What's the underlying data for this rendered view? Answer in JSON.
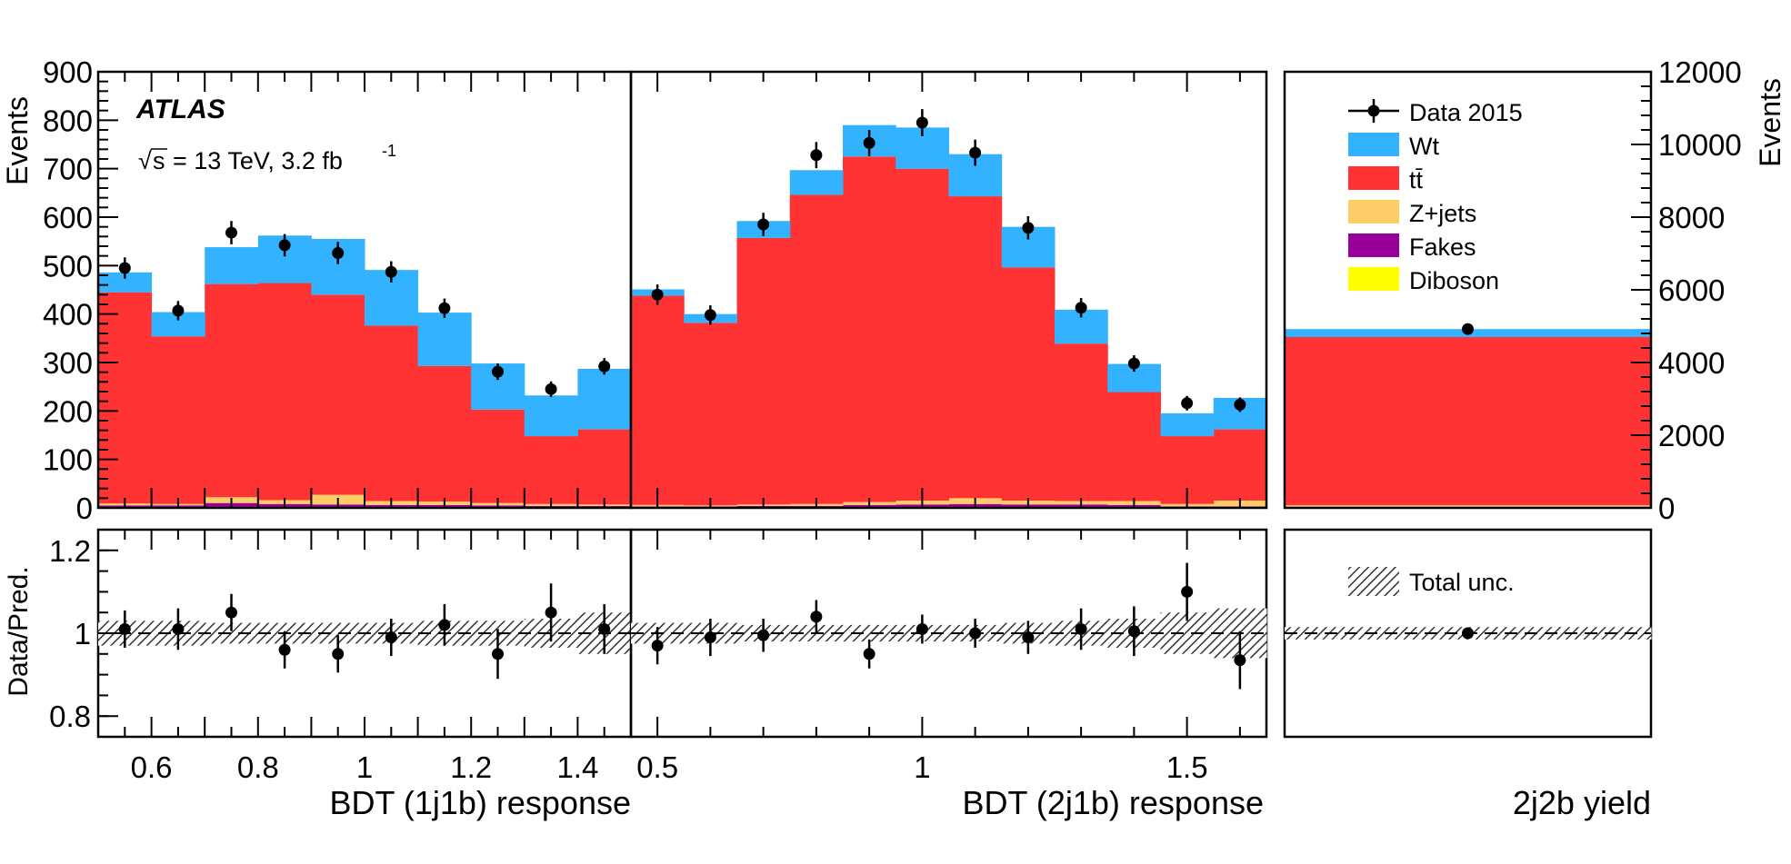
{
  "chart_data": [
    {
      "type": "bar",
      "stacked": true,
      "panel": "BDT (1j1b) response",
      "xlabel": "BDT (1j1b) response",
      "ylabel": "Events",
      "ylim": [
        0,
        900
      ],
      "xlim": [
        0.5,
        1.5
      ],
      "bin_edges": [
        0.5,
        0.6,
        0.7,
        0.8,
        0.9,
        1.0,
        1.1,
        1.2,
        1.3,
        1.4,
        1.5
      ],
      "x_ticks": [
        0.6,
        0.8,
        1,
        1.2,
        1.4
      ],
      "x_tick_labels": [
        "0.6",
        "0.8",
        "1",
        "1.2",
        "1.4"
      ],
      "y_ticks": [
        0,
        100,
        200,
        300,
        400,
        500,
        600,
        700,
        800,
        900
      ],
      "y_tick_labels": [
        "0",
        "100",
        "200",
        "300",
        "400",
        "500",
        "600",
        "700",
        "800",
        "900"
      ],
      "series": [
        {
          "name": "Diboson",
          "color": "#ffff00",
          "values": [
            2,
            2,
            2,
            2,
            2,
            2,
            2,
            2,
            2,
            2
          ]
        },
        {
          "name": "Fakes",
          "color": "#990099",
          "values": [
            3,
            3,
            8,
            6,
            5,
            4,
            4,
            3,
            2,
            2
          ]
        },
        {
          "name": "Z+jets",
          "color": "#ffcc66",
          "values": [
            4,
            3,
            12,
            8,
            20,
            8,
            7,
            5,
            4,
            3
          ]
        },
        {
          "name": "tt̄",
          "color": "#ff3333",
          "values": [
            436,
            346,
            440,
            448,
            413,
            362,
            280,
            193,
            140,
            155
          ]
        },
        {
          "name": "Wt",
          "color": "#33b3ff",
          "values": [
            41,
            50,
            76,
            98,
            115,
            115,
            110,
            95,
            84,
            125
          ]
        }
      ],
      "data": {
        "name": "Data 2015",
        "values": [
          495,
          407,
          568,
          542,
          526,
          487,
          412,
          281,
          245,
          292
        ],
        "errors": [
          22,
          20,
          24,
          23,
          23,
          22,
          20,
          17,
          16,
          17
        ]
      },
      "ratio": {
        "ylabel": "Data/Pred.",
        "ylim": [
          0.75,
          1.25
        ],
        "y_ticks": [
          0.8,
          1,
          1.2
        ],
        "y_tick_labels": [
          "0.8",
          "1",
          "1.2"
        ],
        "values": [
          1.01,
          1.01,
          1.05,
          0.96,
          0.95,
          0.99,
          1.02,
          0.95,
          1.05,
          1.01
        ],
        "errors": [
          0.045,
          0.05,
          0.045,
          0.045,
          0.045,
          0.045,
          0.05,
          0.06,
          0.07,
          0.06
        ],
        "unc": [
          0.03,
          0.03,
          0.025,
          0.025,
          0.025,
          0.025,
          0.03,
          0.03,
          0.035,
          0.05
        ]
      }
    },
    {
      "type": "bar",
      "stacked": true,
      "panel": "BDT (2j1b) response",
      "xlabel": "BDT (2j1b) response",
      "ylabel": "Events",
      "ylim": [
        0,
        900
      ],
      "xlim": [
        0.45,
        1.65
      ],
      "bin_edges": [
        0.45,
        0.55,
        0.65,
        0.75,
        0.85,
        0.95,
        1.05,
        1.15,
        1.25,
        1.35,
        1.45,
        1.55,
        1.65
      ],
      "x_ticks": [
        0.5,
        1,
        1.5
      ],
      "x_tick_labels": [
        "0.5",
        "1",
        "1.5"
      ],
      "series": [
        {
          "name": "Diboson",
          "color": "#ffff00",
          "values": [
            1,
            1,
            1,
            1,
            2,
            2,
            2,
            2,
            2,
            2,
            1,
            1
          ]
        },
        {
          "name": "Fakes",
          "color": "#990099",
          "values": [
            2,
            2,
            3,
            3,
            4,
            5,
            6,
            5,
            5,
            4,
            2,
            2
          ]
        },
        {
          "name": "Z+jets",
          "color": "#ffcc66",
          "values": [
            3,
            2,
            3,
            4,
            6,
            8,
            12,
            8,
            7,
            8,
            5,
            12
          ]
        },
        {
          "name": "tt̄",
          "color": "#ff3333",
          "values": [
            432,
            377,
            550,
            638,
            713,
            685,
            623,
            481,
            325,
            225,
            140,
            147
          ]
        },
        {
          "name": "Wt",
          "color": "#33b3ff",
          "values": [
            13,
            18,
            35,
            51,
            65,
            85,
            87,
            84,
            70,
            58,
            47,
            65
          ]
        }
      ],
      "data": {
        "name": "Data 2015",
        "values": [
          440,
          398,
          585,
          728,
          753,
          795,
          733,
          578,
          413,
          298,
          216,
          213
        ],
        "errors": [
          21,
          20,
          24,
          27,
          27,
          28,
          27,
          24,
          20,
          17,
          15,
          15
        ]
      },
      "ratio": {
        "ylim": [
          0.75,
          1.25
        ],
        "values": [
          0.97,
          0.99,
          0.995,
          1.04,
          0.95,
          1.01,
          1.0,
          0.99,
          1.01,
          1.005,
          1.1,
          0.935
        ],
        "errors": [
          0.045,
          0.045,
          0.04,
          0.04,
          0.035,
          0.035,
          0.035,
          0.04,
          0.05,
          0.06,
          0.07,
          0.07
        ],
        "unc": [
          0.025,
          0.025,
          0.02,
          0.02,
          0.02,
          0.02,
          0.02,
          0.025,
          0.03,
          0.035,
          0.05,
          0.06
        ]
      }
    },
    {
      "type": "bar",
      "stacked": true,
      "panel": "2j2b yield",
      "xlabel": "2j2b yield",
      "ylabel": "Events",
      "ylim": [
        0,
        12000
      ],
      "y_ticks": [
        0,
        2000,
        4000,
        6000,
        8000,
        10000,
        12000
      ],
      "y_tick_labels": [
        "0",
        "2000",
        "4000",
        "6000",
        "8000",
        "10000",
        "12000"
      ],
      "y_axis_side": "right",
      "series": [
        {
          "name": "Diboson",
          "color": "#ffff00",
          "values": [
            10
          ]
        },
        {
          "name": "Fakes",
          "color": "#990099",
          "values": [
            20
          ]
        },
        {
          "name": "Z+jets",
          "color": "#ffcc66",
          "values": [
            40
          ]
        },
        {
          "name": "tt̄",
          "color": "#ff3333",
          "values": [
            4630
          ]
        },
        {
          "name": "Wt",
          "color": "#33b3ff",
          "values": [
            220
          ]
        }
      ],
      "data": {
        "name": "Data 2015",
        "values": [
          4920
        ],
        "errors": [
          70
        ]
      },
      "ratio": {
        "ylim": [
          0.75,
          1.25
        ],
        "values": [
          1.0
        ],
        "errors": [
          0.014
        ],
        "unc": [
          0.015
        ]
      }
    }
  ],
  "labels": {
    "experiment": "ATLAS",
    "energy_prefix": "s",
    "energy_text": "= 13 TeV, 3.2 fb",
    "energy_sup": "-1",
    "y_title_left": "Events",
    "y_title_right": "Events",
    "ratio_title": "Data/Pred.",
    "xlabel_1": "BDT (1j1b) response",
    "xlabel_2": "BDT (2j1b) response",
    "xlabel_3": "2j2b yield"
  },
  "legend": [
    {
      "key": "data",
      "label": "Data 2015"
    },
    {
      "key": "wt",
      "label": "Wt",
      "color": "#33b3ff"
    },
    {
      "key": "ttbar",
      "label": "tt̄",
      "color": "#ff3333"
    },
    {
      "key": "zjets",
      "label": "Z+jets",
      "color": "#ffcc66"
    },
    {
      "key": "fakes",
      "label": "Fakes",
      "color": "#990099"
    },
    {
      "key": "diboson",
      "label": "Diboson",
      "color": "#ffff00"
    }
  ],
  "legend_unc": {
    "label": "Total unc."
  }
}
